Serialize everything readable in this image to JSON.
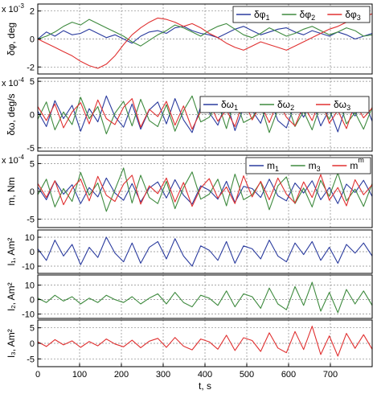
{
  "chart_data": [
    {
      "type": "line",
      "ylabel": "δφ, deg",
      "multiplier": "x 10",
      "multiplier_exp": "-3",
      "xlim": [
        0,
        800
      ],
      "ylim": [
        -2.5,
        2.5
      ],
      "yticks": [
        "2",
        "0",
        "-2"
      ],
      "ytick_values": [
        2,
        0,
        -2
      ],
      "grid": true,
      "legend_position": "top-right",
      "series": [
        {
          "name": "δφ",
          "sub": "1",
          "color": "#2a3b9e",
          "values": [
            0.0,
            0.5,
            0.2,
            0.6,
            0.3,
            0.4,
            0.7,
            0.4,
            0.1,
            0.3,
            0.0,
            -0.3,
            0.2,
            0.5,
            0.6,
            0.4,
            0.8,
            0.9,
            0.6,
            0.4,
            0.3,
            0.1,
            0.4,
            0.7,
            0.9,
            0.6,
            0.3,
            0.5,
            0.7,
            0.8,
            0.5,
            0.3,
            0.6,
            0.4,
            0.2,
            0.5,
            0.3,
            0.0,
            0.2,
            0.4
          ]
        },
        {
          "name": "δφ",
          "sub": "2",
          "color": "#3e8a3e",
          "values": [
            0.0,
            0.2,
            0.5,
            0.9,
            1.2,
            1.0,
            1.4,
            1.1,
            0.8,
            0.5,
            0.2,
            -0.2,
            -0.5,
            -0.1,
            0.3,
            0.6,
            1.0,
            0.8,
            0.5,
            0.2,
            0.6,
            0.9,
            1.1,
            0.7,
            0.3,
            0.1,
            0.4,
            0.8,
            0.5,
            0.2,
            0.4,
            0.7,
            0.9,
            0.6,
            0.3,
            0.5,
            0.8,
            0.6,
            0.2,
            0.3
          ]
        },
        {
          "name": "δφ",
          "sub": "3",
          "color": "#e03030",
          "values": [
            0.0,
            -0.3,
            -0.6,
            -0.9,
            -1.2,
            -1.6,
            -1.9,
            -2.1,
            -1.8,
            -1.2,
            -0.4,
            0.3,
            0.8,
            1.2,
            1.5,
            1.4,
            1.2,
            0.9,
            1.1,
            0.8,
            0.4,
            0.1,
            -0.3,
            -0.6,
            -0.8,
            -0.5,
            -0.2,
            -0.4,
            -0.6,
            -0.8,
            -0.5,
            -0.2,
            0.1,
            0.4,
            0.7,
            0.9,
            1.2,
            1.4,
            1.6,
            1.8
          ]
        }
      ]
    },
    {
      "type": "line",
      "ylabel": "δω, deg/s",
      "multiplier": "x 10",
      "multiplier_exp": "-4",
      "xlim": [
        0,
        800
      ],
      "ylim": [
        -5.5,
        5.5
      ],
      "yticks": [
        "5",
        "0",
        "-5"
      ],
      "ytick_values": [
        5,
        0,
        -5
      ],
      "grid": true,
      "legend_position": "top-right",
      "series": [
        {
          "name": "δω",
          "sub": "1",
          "color": "#2a3b9e",
          "values": [
            0.5,
            -1.8,
            2.1,
            -0.6,
            1.4,
            -2.5,
            0.9,
            -1.1,
            2.8,
            -0.3,
            -1.9,
            1.6,
            -2.2,
            0.7,
            1.9,
            -1.4,
            2.4,
            -0.8,
            -2.7,
            1.2,
            0.3,
            -1.6,
            2.0,
            -2.4,
            1.1,
            0.6,
            -1.3,
            2.6,
            -0.9,
            -2.0,
            1.7,
            -0.4,
            2.2,
            -1.7,
            0.8,
            -2.6,
            1.5,
            -0.2,
            2.3,
            -1.0
          ]
        },
        {
          "name": "δω",
          "sub": "2",
          "color": "#3e8a3e",
          "values": [
            -0.7,
            1.9,
            -2.3,
            0.4,
            -1.5,
            2.6,
            -0.6,
            1.2,
            -2.9,
            0.2,
            2.0,
            -1.7,
            2.3,
            -0.9,
            -1.8,
            1.5,
            -2.5,
            0.6,
            2.8,
            -1.1,
            -0.4,
            1.8,
            -2.1,
            2.5,
            -1.2,
            -0.5,
            1.4,
            -2.7,
            0.8,
            2.1,
            -1.8,
            0.5,
            -2.3,
            1.6,
            -0.7,
            2.7,
            -1.4,
            0.3,
            -2.2,
            1.1
          ]
        },
        {
          "name": "δω",
          "sub": "3",
          "color": "#e03030",
          "values": [
            1.2,
            -0.9,
            1.6,
            -2.0,
            0.4,
            1.8,
            -1.4,
            2.2,
            -0.6,
            -1.5,
            1.1,
            2.4,
            -1.9,
            0.8,
            -0.3,
            2.0,
            -1.6,
            1.3,
            -2.2,
            0.5,
            1.9,
            -1.0,
            0.7,
            -1.8,
            2.3,
            -0.8,
            1.5,
            -1.2,
            2.0,
            -0.4,
            -1.7,
            1.4,
            -0.9,
            2.5,
            -1.3,
            0.6,
            -2.1,
            1.7,
            -0.5,
            1.0
          ]
        }
      ]
    },
    {
      "type": "line",
      "ylabel": "m, Nm",
      "multiplier": "x 10",
      "multiplier_exp": "-4",
      "xlim": [
        0,
        800
      ],
      "ylim": [
        -6.5,
        6.5
      ],
      "yticks": [
        "5",
        "0",
        "-5"
      ],
      "ytick_values": [
        5,
        0,
        -5
      ],
      "grid": true,
      "legend_position": "top-right",
      "series": [
        {
          "name": "m",
          "sub": "1",
          "sup": "",
          "color": "#2a3b9e",
          "values": [
            0.8,
            -1.5,
            1.9,
            -0.5,
            1.2,
            -2.2,
            0.7,
            -1.0,
            2.4,
            -0.3,
            -1.6,
            1.4,
            -1.9,
            0.6,
            1.7,
            -1.2,
            2.1,
            -0.7,
            -2.3,
            1.0,
            0.2,
            -1.4,
            1.8,
            -2.0,
            0.9,
            0.5,
            -1.1,
            2.2,
            -0.8,
            -1.7,
            1.5,
            -0.3,
            1.9,
            -1.5,
            0.7,
            -2.2,
            1.3,
            -0.2,
            2.0,
            -0.9
          ]
        },
        {
          "name": "m",
          "sub": "3",
          "sup": "",
          "color": "#3e8a3e",
          "values": [
            -0.6,
            2.2,
            -2.8,
            0.5,
            -1.8,
            3.4,
            -0.7,
            1.5,
            -3.6,
            0.3,
            4.2,
            -2.1,
            2.9,
            -1.1,
            -2.2,
            1.8,
            -3.1,
            0.7,
            3.5,
            -1.4,
            -0.5,
            2.2,
            -2.6,
            3.1,
            -1.5,
            -0.6,
            1.7,
            -3.3,
            1.0,
            2.6,
            -2.2,
            0.6,
            -2.8,
            2.0,
            -0.9,
            3.3,
            -1.7,
            0.4,
            -2.7,
            1.4
          ]
        },
        {
          "name": "m",
          "sub": "",
          "sup": "m",
          "color": "#e03030",
          "values": [
            1.4,
            -1.1,
            1.9,
            -2.4,
            0.5,
            2.2,
            -1.7,
            2.7,
            -0.7,
            -1.8,
            1.3,
            2.9,
            -2.3,
            1.0,
            -0.4,
            2.4,
            -1.9,
            1.6,
            -2.7,
            0.6,
            2.3,
            -1.2,
            0.8,
            -2.2,
            2.8,
            -1.0,
            1.8,
            -1.5,
            2.4,
            -0.5,
            -2.1,
            1.7,
            -1.1,
            3.0,
            -1.6,
            0.7,
            -2.6,
            2.1,
            -0.6,
            1.2
          ]
        }
      ]
    },
    {
      "type": "line",
      "ylabel": "l₁, Am²",
      "xlim": [
        0,
        800
      ],
      "ylim": [
        -15,
        15
      ],
      "yticks": [
        "10",
        "0",
        "-10"
      ],
      "ytick_values": [
        10,
        0,
        -10
      ],
      "grid": true,
      "series": [
        {
          "name": "",
          "color": "#2a3b9e",
          "values": [
            2,
            -6,
            8,
            -3,
            5,
            -9,
            3,
            -4,
            10,
            -1,
            -7,
            6,
            -8,
            3,
            7,
            -5,
            9,
            -3,
            -10,
            4,
            1,
            -6,
            7,
            -8,
            4,
            2,
            -5,
            8,
            -3,
            -7,
            6,
            -2,
            7,
            -6,
            3,
            -8,
            5,
            -1,
            6,
            -3
          ]
        }
      ]
    },
    {
      "type": "line",
      "ylabel": "l₂, Am²",
      "xlim": [
        0,
        800
      ],
      "ylim": [
        -13,
        17
      ],
      "yticks": [
        "10",
        "0",
        "-10"
      ],
      "ytick_values": [
        10,
        0,
        -10
      ],
      "grid": true,
      "series": [
        {
          "name": "",
          "color": "#3e8a3e",
          "values": [
            1,
            -2,
            3,
            -1,
            2,
            -3,
            1,
            -2,
            3,
            0,
            -2,
            2,
            -3,
            1,
            4,
            -3,
            5,
            -2,
            -5,
            3,
            1,
            -4,
            6,
            -5,
            4,
            2,
            -6,
            8,
            -3,
            -7,
            9,
            -4,
            12,
            -8,
            5,
            -9,
            7,
            -3,
            6,
            -4
          ]
        }
      ]
    },
    {
      "type": "line",
      "ylabel": "l₃, Am²",
      "xlim": [
        0,
        800
      ],
      "ylim": [
        -7.5,
        7.5
      ],
      "yticks": [
        "5",
        "0",
        "-5"
      ],
      "ytick_values": [
        5,
        0,
        -5
      ],
      "grid": true,
      "xlabel": "t, s",
      "xticks": [
        "0",
        "100",
        "200",
        "300",
        "400",
        "500",
        "600",
        "700"
      ],
      "xtick_values": [
        0,
        100,
        200,
        300,
        400,
        500,
        600,
        700
      ],
      "series": [
        {
          "name": "",
          "color": "#e03030",
          "values": [
            0.5,
            -1,
            1.2,
            -0.5,
            0.8,
            -1.3,
            0.6,
            -0.8,
            1.4,
            -0.2,
            -1.1,
            1.0,
            -1.4,
            0.7,
            1.6,
            -1.3,
            1.9,
            -0.9,
            -2.1,
            1.4,
            0.5,
            -1.9,
            2.6,
            -2.3,
            1.8,
            0.9,
            -2.6,
            3.4,
            -1.5,
            -3.0,
            3.8,
            -2.0,
            5.5,
            -3.6,
            2.4,
            -4.1,
            3.2,
            -1.6,
            2.8,
            -1.9
          ]
        }
      ]
    }
  ]
}
